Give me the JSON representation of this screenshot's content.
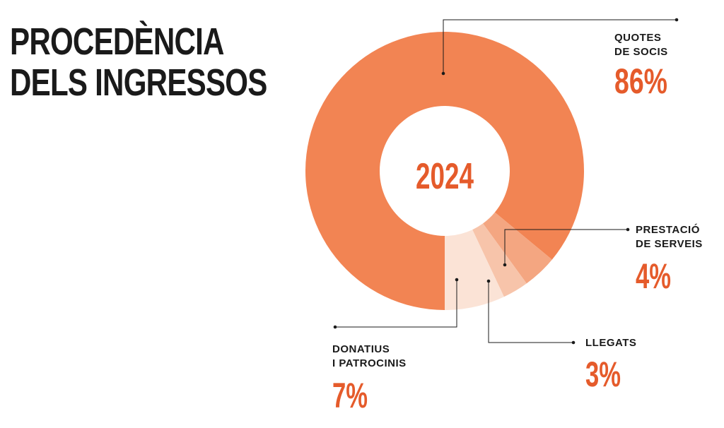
{
  "title": {
    "line1": "PROCEDÈNCIA",
    "line2": "DELS INGRESSOS"
  },
  "chart_data": {
    "type": "pie",
    "center_label": "2024",
    "slices": [
      {
        "name_lines": [
          "QUOTES",
          "DE SOCIS"
        ],
        "value": 86,
        "label": "86%",
        "color": "#f28453"
      },
      {
        "name_lines": [
          "PRESTACIÓ",
          "DE SERVEIS"
        ],
        "value": 4,
        "label": "4%",
        "color": "#f4a681"
      },
      {
        "name_lines": [
          "LLEGATS"
        ],
        "value": 3,
        "label": "3%",
        "color": "#f7c4aa"
      },
      {
        "name_lines": [
          "DONATIUS",
          "I PATROCINIS"
        ],
        "value": 7,
        "label": "7%",
        "color": "#fbe3d6"
      }
    ],
    "accent_color": "#e55b2b"
  }
}
